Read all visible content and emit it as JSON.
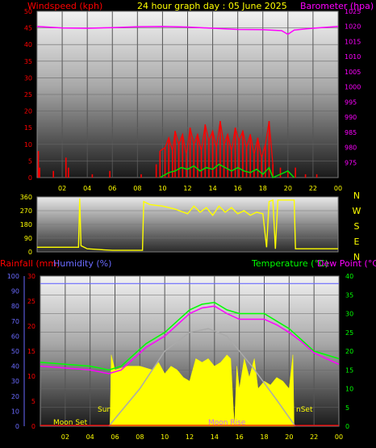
{
  "header": {
    "title": "24 hour graph day : 05 June 2025",
    "left_label": "Windspeed (kph)",
    "right_label": "Barometer (hpa)"
  },
  "colors": {
    "wind": "#ff0000",
    "gust_green": "#00dd00",
    "barometer": "#ff00ff",
    "direction": "#ffff00",
    "temperature": "#00ff00",
    "dewpoint": "#ff00ff",
    "humidity_line": "#6a6aff",
    "rain_axis": "#ff0000",
    "solar": "#ffff00",
    "sun_curve": "#aaaaaa",
    "text_yellow": "#ffff00",
    "text_red": "#ff0000",
    "text_magenta": "#ff00ff",
    "text_green": "#00ff00",
    "text_blue": "#6a6aff"
  },
  "chart_data": [
    {
      "type": "line",
      "name": "wind-barometer",
      "title": "24 hour graph day : 05 June 2025",
      "x_ticks": [
        "02",
        "04",
        "06",
        "08",
        "10",
        "12",
        "14",
        "16",
        "18",
        "20",
        "22",
        "00"
      ],
      "left_axis": {
        "label": "Windspeed (kph)",
        "ylim": [
          0,
          50
        ],
        "ticks": [
          "0",
          "5",
          "10",
          "15",
          "20",
          "25",
          "30",
          "35",
          "40",
          "45",
          "50"
        ]
      },
      "right_axis": {
        "label": "Barometer (hpa)",
        "ylim": [
          970,
          1025
        ],
        "ticks": [
          "975",
          "980",
          "985",
          "990",
          "995",
          "1000",
          "1005",
          "1010",
          "1015",
          "1020",
          "1025"
        ]
      },
      "series": [
        {
          "name": "Windspeed",
          "values_description_free": true,
          "points": [
            [
              0.1,
              8
            ],
            [
              0.2,
              3
            ],
            [
              1.3,
              2
            ],
            [
              2.3,
              6
            ],
            [
              2.5,
              3
            ],
            [
              4.4,
              1
            ],
            [
              5.8,
              2
            ],
            [
              8.3,
              1
            ],
            [
              9.5,
              4
            ],
            [
              9.8,
              8
            ],
            [
              10.2,
              9
            ],
            [
              10.5,
              12
            ],
            [
              10.8,
              8
            ],
            [
              11.0,
              14
            ],
            [
              11.3,
              10
            ],
            [
              11.6,
              13
            ],
            [
              11.9,
              7
            ],
            [
              12.2,
              15
            ],
            [
              12.5,
              10
            ],
            [
              12.8,
              13
            ],
            [
              13.1,
              8
            ],
            [
              13.4,
              16
            ],
            [
              13.7,
              11
            ],
            [
              14.0,
              14
            ],
            [
              14.3,
              9
            ],
            [
              14.6,
              17
            ],
            [
              14.9,
              10
            ],
            [
              15.2,
              13
            ],
            [
              15.5,
              8
            ],
            [
              15.8,
              15
            ],
            [
              16.1,
              11
            ],
            [
              16.4,
              14
            ],
            [
              16.7,
              9
            ],
            [
              17.0,
              13
            ],
            [
              17.3,
              7
            ],
            [
              17.6,
              12
            ],
            [
              17.9,
              6
            ],
            [
              18.2,
              10
            ],
            [
              18.5,
              17
            ],
            [
              18.8,
              4
            ],
            [
              19.4,
              3
            ],
            [
              20.0,
              2
            ],
            [
              20.6,
              3
            ],
            [
              21.4,
              1
            ],
            [
              22.3,
              1
            ]
          ]
        },
        {
          "name": "Gust-avg",
          "points": [
            [
              9.8,
              0
            ],
            [
              10.5,
              1.5
            ],
            [
              11.0,
              2
            ],
            [
              11.5,
              3
            ],
            [
              12.0,
              2.5
            ],
            [
              12.5,
              3.5
            ],
            [
              13.0,
              2
            ],
            [
              13.5,
              3
            ],
            [
              14.0,
              2.5
            ],
            [
              14.5,
              4
            ],
            [
              15.0,
              3
            ],
            [
              15.5,
              2
            ],
            [
              16.0,
              3
            ],
            [
              16.5,
              2
            ],
            [
              17.0,
              1.5
            ],
            [
              17.5,
              2.5
            ],
            [
              18.0,
              1
            ],
            [
              18.5,
              3
            ],
            [
              18.8,
              0
            ],
            [
              20.0,
              2
            ],
            [
              20.5,
              0
            ]
          ]
        },
        {
          "name": "Barometer",
          "points": [
            [
              0,
              1020
            ],
            [
              2,
              1019.5
            ],
            [
              4,
              1019.4
            ],
            [
              6,
              1019.6
            ],
            [
              8,
              1019.9
            ],
            [
              10,
              1020
            ],
            [
              12,
              1019.8
            ],
            [
              14,
              1019.4
            ],
            [
              16,
              1019
            ],
            [
              18,
              1018.9
            ],
            [
              19.5,
              1018.6
            ],
            [
              20.0,
              1017.4
            ],
            [
              20.5,
              1018.8
            ],
            [
              22,
              1019.4
            ],
            [
              24,
              1020
            ]
          ]
        }
      ]
    },
    {
      "type": "line",
      "name": "wind-direction",
      "left_axis": {
        "ylim": [
          0,
          360
        ],
        "ticks": [
          "0",
          "90",
          "180",
          "270",
          "360"
        ]
      },
      "right_labels": [
        "N",
        "W",
        "S",
        "E",
        "N"
      ],
      "series": [
        {
          "name": "Direction",
          "points": [
            [
              0,
              30
            ],
            [
              3.3,
              30
            ],
            [
              3.4,
              350
            ],
            [
              3.5,
              40
            ],
            [
              4.0,
              20
            ],
            [
              5.0,
              15
            ],
            [
              6.0,
              10
            ],
            [
              8.4,
              10
            ],
            [
              8.5,
              330
            ],
            [
              9.0,
              310
            ],
            [
              10.0,
              300
            ],
            [
              11.0,
              280
            ],
            [
              12.0,
              250
            ],
            [
              12.5,
              300
            ],
            [
              13.0,
              260
            ],
            [
              13.5,
              290
            ],
            [
              14.0,
              240
            ],
            [
              14.5,
              300
            ],
            [
              15.0,
              260
            ],
            [
              15.5,
              290
            ],
            [
              16.0,
              250
            ],
            [
              16.5,
              270
            ],
            [
              17.0,
              240
            ],
            [
              17.5,
              260
            ],
            [
              18.0,
              250
            ],
            [
              18.3,
              30
            ],
            [
              18.5,
              330
            ],
            [
              18.8,
              340
            ],
            [
              19.0,
              20
            ],
            [
              19.2,
              340
            ],
            [
              20.5,
              340
            ],
            [
              20.6,
              20
            ],
            [
              24,
              20
            ]
          ]
        }
      ]
    },
    {
      "type": "area",
      "name": "rain-humidity-temperature",
      "legend_left": [
        "Rainfall (mm)",
        "Humidity (%)"
      ],
      "legend_right": [
        "Temperature (°C)",
        "Dew Point (°C)"
      ],
      "humidity_axis": {
        "ylim": [
          0,
          100
        ],
        "ticks": [
          "0",
          "10",
          "20",
          "30",
          "40",
          "50",
          "60",
          "70",
          "80",
          "90",
          "100"
        ]
      },
      "rain_axis": {
        "ylim": [
          0,
          30
        ],
        "ticks": [
          "0",
          "5",
          "10",
          "15",
          "20",
          "25",
          "30"
        ]
      },
      "temp_axis": {
        "ylim": [
          0,
          40
        ],
        "ticks": [
          "0",
          "5",
          "10",
          "15",
          "20",
          "25",
          "30",
          "35",
          "40"
        ]
      },
      "x_ticks": [
        "02",
        "04",
        "06",
        "08",
        "10",
        "12",
        "14",
        "16",
        "18",
        "20",
        "22",
        "00"
      ],
      "annotations": [
        "Moon Set",
        "Sun",
        "Moon Rise",
        "nSet"
      ],
      "series": [
        {
          "name": "Humidity",
          "points": [
            [
              0,
              95
            ],
            [
              24,
              95
            ]
          ]
        },
        {
          "name": "Temperature",
          "points": [
            [
              0,
              17
            ],
            [
              2,
              16.5
            ],
            [
              4,
              16
            ],
            [
              5.5,
              15
            ],
            [
              6.5,
              16
            ],
            [
              7.5,
              19
            ],
            [
              8.5,
              22
            ],
            [
              10,
              25
            ],
            [
              11,
              28
            ],
            [
              12,
              31
            ],
            [
              13,
              32.5
            ],
            [
              14,
              33
            ],
            [
              15,
              31
            ],
            [
              16,
              30
            ],
            [
              17,
              30
            ],
            [
              18,
              30
            ],
            [
              19,
              28
            ],
            [
              20,
              26
            ],
            [
              21,
              23
            ],
            [
              22,
              20
            ],
            [
              23,
              19
            ],
            [
              24,
              18
            ]
          ]
        },
        {
          "name": "Dew Point",
          "points": [
            [
              0,
              16
            ],
            [
              2,
              15.5
            ],
            [
              4,
              15
            ],
            [
              5.5,
              14
            ],
            [
              6.5,
              15
            ],
            [
              7.5,
              18
            ],
            [
              8.5,
              21
            ],
            [
              10,
              24
            ],
            [
              11,
              27
            ],
            [
              12,
              30
            ],
            [
              13,
              31.5
            ],
            [
              14,
              32
            ],
            [
              15,
              30
            ],
            [
              16,
              28.5
            ],
            [
              17,
              28.5
            ],
            [
              18,
              28.5
            ],
            [
              19,
              27
            ],
            [
              20,
              25
            ],
            [
              21,
              22.5
            ],
            [
              22,
              19.5
            ],
            [
              23,
              18
            ],
            [
              24,
              16.5
            ]
          ]
        },
        {
          "name": "Solar",
          "points": [
            [
              5.6,
              0
            ],
            [
              5.7,
              19
            ],
            [
              6.0,
              15
            ],
            [
              7.0,
              16
            ],
            [
              8.0,
              16
            ],
            [
              9.0,
              15
            ],
            [
              9.5,
              17
            ],
            [
              10.0,
              14
            ],
            [
              10.5,
              16
            ],
            [
              11.0,
              15
            ],
            [
              11.5,
              13
            ],
            [
              12.0,
              12
            ],
            [
              12.5,
              18
            ],
            [
              13.0,
              17
            ],
            [
              13.5,
              18
            ],
            [
              14.0,
              16
            ],
            [
              14.5,
              17
            ],
            [
              15.0,
              19
            ],
            [
              15.3,
              18
            ],
            [
              15.6,
              0
            ],
            [
              15.8,
              16
            ],
            [
              16.0,
              10
            ],
            [
              16.4,
              18
            ],
            [
              16.8,
              13
            ],
            [
              17.2,
              18
            ],
            [
              17.5,
              10
            ],
            [
              18.0,
              12
            ],
            [
              18.5,
              11
            ],
            [
              19.0,
              13
            ],
            [
              19.5,
              12
            ],
            [
              20.0,
              10
            ],
            [
              20.3,
              19
            ],
            [
              20.4,
              0
            ]
          ]
        },
        {
          "name": "Sun",
          "points": [
            [
              5.5,
              0
            ],
            [
              8,
              10
            ],
            [
              10,
              20
            ],
            [
              12,
              25
            ],
            [
              13.5,
              26
            ],
            [
              15,
              24
            ],
            [
              17,
              16
            ],
            [
              19,
              7
            ],
            [
              20.5,
              0
            ]
          ]
        }
      ]
    }
  ]
}
